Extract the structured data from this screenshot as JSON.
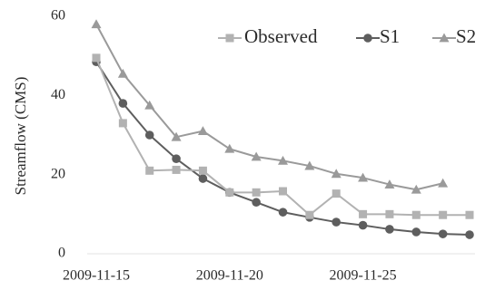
{
  "chart_data": {
    "type": "line",
    "title": "",
    "xlabel": "",
    "ylabel": "Streamflow (CMS)",
    "x": [
      "2009-11-15",
      "2009-11-16",
      "2009-11-17",
      "2009-11-18",
      "2009-11-19",
      "2009-11-20",
      "2009-11-21",
      "2009-11-22",
      "2009-11-23",
      "2009-11-24",
      "2009-11-25",
      "2009-11-26",
      "2009-11-27",
      "2009-11-28",
      "2009-11-29"
    ],
    "x_tick_labels": [
      "2009-11-15",
      "2009-11-20",
      "2009-11-25"
    ],
    "x_tick_indices": [
      0,
      5,
      10
    ],
    "ylim": [
      0,
      60
    ],
    "y_ticks": [
      0,
      20,
      40,
      60
    ],
    "grid": false,
    "legend_position": "top-right",
    "series": [
      {
        "name": "Observed",
        "marker": "square",
        "color": "#b2b2b2",
        "values": [
          49.5,
          33.0,
          21.0,
          21.2,
          21.0,
          15.5,
          15.5,
          15.8,
          9.8,
          15.2,
          10.0,
          10.0,
          9.8,
          9.8,
          9.8
        ]
      },
      {
        "name": "S1",
        "marker": "circle",
        "color": "#5e5e5e",
        "values": [
          48.5,
          38.0,
          30.0,
          24.0,
          19.0,
          15.5,
          13.0,
          10.5,
          9.2,
          8.0,
          7.2,
          6.2,
          5.5,
          5.0,
          4.8
        ]
      },
      {
        "name": "S2",
        "marker": "triangle",
        "color": "#9a9a9a",
        "values": [
          58.0,
          45.5,
          37.5,
          29.5,
          31.0,
          26.5,
          24.5,
          23.5,
          22.2,
          20.2,
          19.2,
          17.5,
          16.2,
          17.8,
          null
        ]
      }
    ]
  }
}
